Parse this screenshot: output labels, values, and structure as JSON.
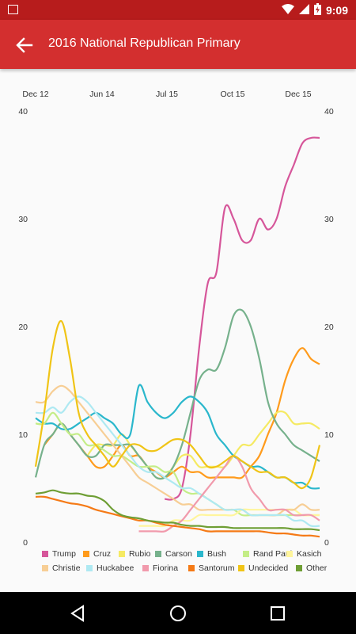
{
  "status_bar": {
    "time": "9:09"
  },
  "app_bar": {
    "title": "2016 National Republican Primary"
  },
  "chart_data": {
    "type": "line",
    "x_tick_labels": [
      "Dec 12",
      "Jun 14",
      "Jul 15",
      "Oct 15",
      "Dec 15"
    ],
    "ylim": [
      0,
      40
    ],
    "y_ticks": [
      0,
      10,
      20,
      30,
      40
    ],
    "legend_position": "bottom",
    "series": [
      {
        "name": "Trump",
        "color": "#d6569a",
        "values": [
          null,
          null,
          null,
          null,
          null,
          null,
          null,
          null,
          null,
          null,
          null,
          null,
          null,
          null,
          null,
          4,
          4,
          5,
          10,
          18,
          24,
          25,
          31,
          30,
          28,
          28,
          30,
          29,
          30,
          33,
          35,
          37,
          37.5,
          37.5
        ]
      },
      {
        "name": "Cruz",
        "color": "#ff9b1c",
        "values": [
          null,
          9,
          10,
          11,
          10,
          9,
          8,
          7,
          7,
          8,
          9,
          8,
          8,
          7,
          6.5,
          6,
          6.5,
          7,
          6.5,
          6.5,
          6,
          6,
          6,
          6,
          6,
          7,
          8,
          10,
          12,
          15,
          17,
          18,
          17,
          16.5
        ]
      },
      {
        "name": "Rubio",
        "color": "#f5ea63",
        "values": [
          null,
          null,
          null,
          null,
          null,
          null,
          8,
          9,
          9,
          9,
          10,
          9,
          8,
          7,
          6,
          6,
          7,
          8,
          8,
          7,
          7,
          7,
          7,
          8,
          9,
          9,
          10,
          11,
          12,
          12,
          11,
          11,
          11,
          10.5
        ]
      },
      {
        "name": "Carson",
        "color": "#76b18c",
        "values": [
          6,
          9,
          10,
          11,
          10,
          9,
          8,
          8,
          9,
          9,
          9,
          9,
          8,
          7,
          6,
          6,
          7,
          9,
          12,
          15,
          16,
          16,
          18,
          21,
          21.5,
          20,
          17,
          13,
          11,
          10,
          9,
          8.5,
          8,
          7.5
        ]
      },
      {
        "name": "Bush",
        "color": "#2ab7cc",
        "values": [
          11.5,
          11,
          11,
          10.5,
          10.5,
          11,
          11.5,
          12,
          11.5,
          11,
          10,
          10,
          14.5,
          13,
          12,
          11.5,
          12,
          13,
          13.5,
          13,
          12,
          10,
          9,
          8,
          7.5,
          7,
          7,
          6.5,
          6,
          6,
          5.5,
          5.5,
          5,
          5
        ]
      },
      {
        "name": "Rand Paul",
        "color": "#c4ed87",
        "values": [
          11,
          11,
          12,
          11,
          10,
          10,
          9,
          9,
          8.5,
          8,
          8,
          7.5,
          7,
          7,
          7,
          6.5,
          6.5,
          5,
          4.5,
          4.5,
          4,
          3.5,
          3,
          3,
          2.5,
          2.5,
          2.5,
          2.5,
          2.5,
          2.5,
          2.5,
          2.5,
          2.5,
          2.5
        ]
      },
      {
        "name": "Kasich",
        "color": "#fff59c",
        "values": [
          null,
          null,
          null,
          null,
          null,
          null,
          null,
          null,
          null,
          null,
          null,
          null,
          1.5,
          1.5,
          1.5,
          1.5,
          2,
          2,
          2,
          2.5,
          2.5,
          2.5,
          2.5,
          2.5,
          3,
          3,
          3,
          3,
          3,
          3,
          3,
          2.5,
          2.5,
          2.5
        ]
      },
      {
        "name": "Christie",
        "color": "#f7ce95",
        "values": [
          13,
          13,
          14,
          14.5,
          14,
          13,
          12,
          11,
          10,
          9,
          8,
          7,
          6,
          5.5,
          5,
          4.5,
          4,
          3.5,
          3.5,
          3,
          3,
          3,
          3,
          3,
          3,
          2.5,
          2.5,
          2.5,
          2.5,
          3,
          3,
          3.5,
          3,
          3
        ]
      },
      {
        "name": "Huckabee",
        "color": "#aee9f2",
        "values": [
          12,
          12,
          12.5,
          12,
          13,
          13.5,
          13,
          12,
          11,
          10,
          9,
          8,
          7,
          6.5,
          6.5,
          6,
          5.5,
          5,
          5,
          4.5,
          4,
          3.5,
          3,
          3,
          3,
          2.5,
          2.5,
          2.5,
          2.5,
          2.5,
          2,
          2,
          1.5,
          1.5
        ]
      },
      {
        "name": "Fiorina",
        "color": "#f19aac",
        "values": [
          null,
          null,
          null,
          null,
          null,
          null,
          null,
          null,
          null,
          null,
          null,
          null,
          1,
          1,
          1,
          1,
          1.5,
          2,
          3,
          4,
          5,
          6,
          7,
          8,
          7,
          5,
          4,
          3,
          3,
          3,
          2.5,
          2.5,
          2.5,
          2
        ]
      },
      {
        "name": "Santorum",
        "color": "#f57a16",
        "values": [
          4.2,
          4.2,
          4,
          3.8,
          3.6,
          3.5,
          3.3,
          3,
          2.8,
          2.6,
          2.4,
          2.2,
          2,
          2,
          1.8,
          1.6,
          1.5,
          1.4,
          1.3,
          1.2,
          1,
          1,
          1,
          1,
          1,
          1,
          1,
          0.9,
          0.8,
          0.8,
          0.7,
          0.6,
          0.6,
          0.5
        ]
      },
      {
        "name": "Undecided",
        "color": "#f0c416",
        "values": [
          7,
          12,
          18,
          20.5,
          17,
          12,
          10,
          9,
          8,
          7,
          8,
          9,
          9,
          8.5,
          8.5,
          9,
          9.5,
          9.5,
          9,
          8,
          7,
          7,
          7.5,
          8,
          7.5,
          7,
          6.5,
          6.5,
          6,
          6,
          5.5,
          5,
          6,
          9
        ]
      },
      {
        "name": "Other",
        "color": "#6e9e34",
        "values": [
          4.5,
          4.6,
          4.8,
          4.6,
          4.5,
          4.5,
          4.3,
          4.2,
          3.8,
          3,
          2.5,
          2.3,
          2.2,
          2,
          1.9,
          1.8,
          1.8,
          1.6,
          1.5,
          1.5,
          1.4,
          1.4,
          1.4,
          1.3,
          1.3,
          1.3,
          1.3,
          1.3,
          1.3,
          1.3,
          1.2,
          1.2,
          1.2,
          1.1
        ]
      }
    ]
  }
}
